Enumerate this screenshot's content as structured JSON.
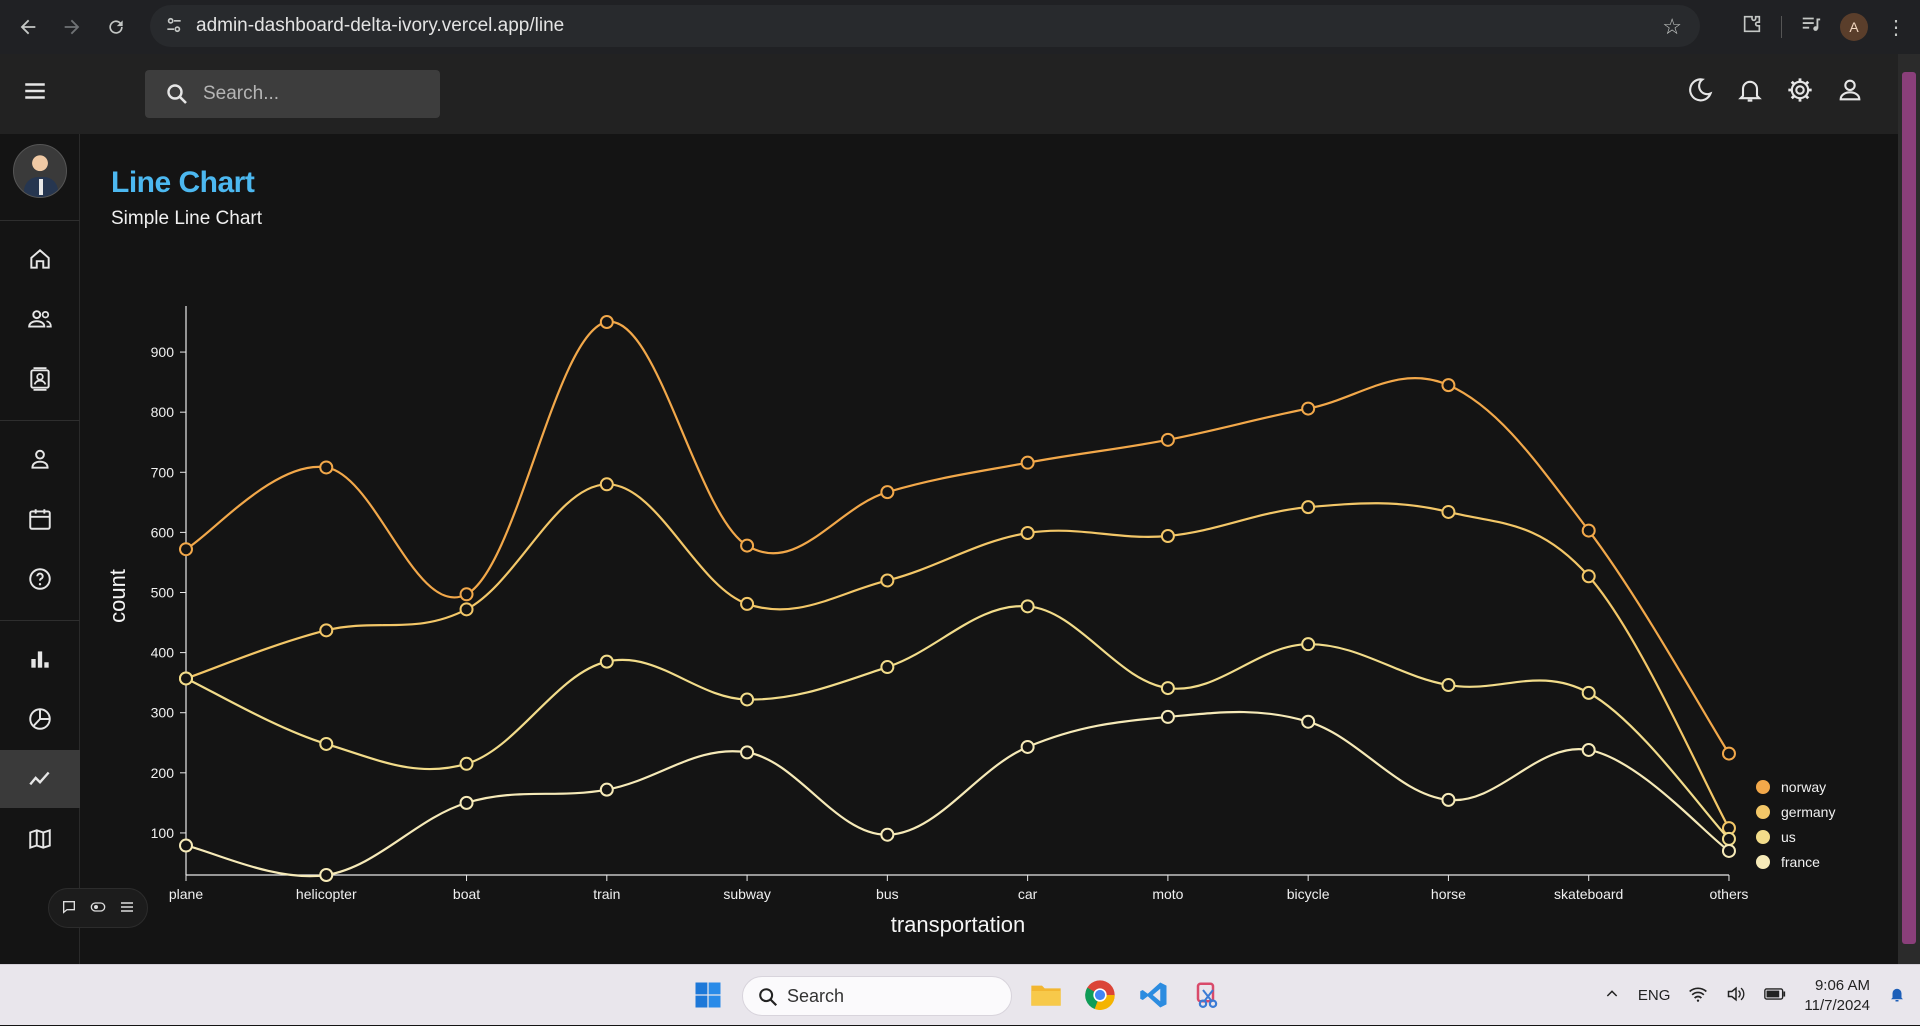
{
  "browser": {
    "url": "admin-dashboard-delta-ivory.vercel.app/line",
    "profile_initial": "A"
  },
  "topbar": {
    "search_placeholder": "Search..."
  },
  "page": {
    "title": "Line Chart",
    "subtitle": "Simple Line Chart"
  },
  "chart_data": {
    "type": "line",
    "categories": [
      "plane",
      "helicopter",
      "boat",
      "train",
      "subway",
      "bus",
      "car",
      "moto",
      "bicycle",
      "horse",
      "skateboard",
      "others"
    ],
    "xlabel": "transportation",
    "ylabel": "count",
    "ylim": [
      30,
      960
    ],
    "yticks": [
      100,
      200,
      300,
      400,
      500,
      600,
      700,
      800,
      900
    ],
    "legend_position": "bottom-right",
    "series": [
      {
        "name": "norway",
        "color": "#f2a84a",
        "values": [
          572,
          708,
          497,
          950,
          578,
          667,
          716,
          754,
          806,
          845,
          603,
          232
        ]
      },
      {
        "name": "germany",
        "color": "#f3c768",
        "values": [
          357,
          437,
          472,
          680,
          481,
          520,
          599,
          594,
          642,
          634,
          527,
          108
        ]
      },
      {
        "name": "us",
        "color": "#f2dc8a",
        "values": [
          357,
          248,
          215,
          385,
          322,
          376,
          477,
          341,
          414,
          346,
          333,
          90
        ]
      },
      {
        "name": "france",
        "color": "#f6eab8",
        "values": [
          79,
          30,
          150,
          172,
          234,
          97,
          243,
          293,
          285,
          155,
          238,
          70
        ]
      }
    ]
  },
  "taskbar": {
    "search_label": "Search",
    "language": "ENG",
    "time": "9:06 AM",
    "date": "11/7/2024"
  }
}
